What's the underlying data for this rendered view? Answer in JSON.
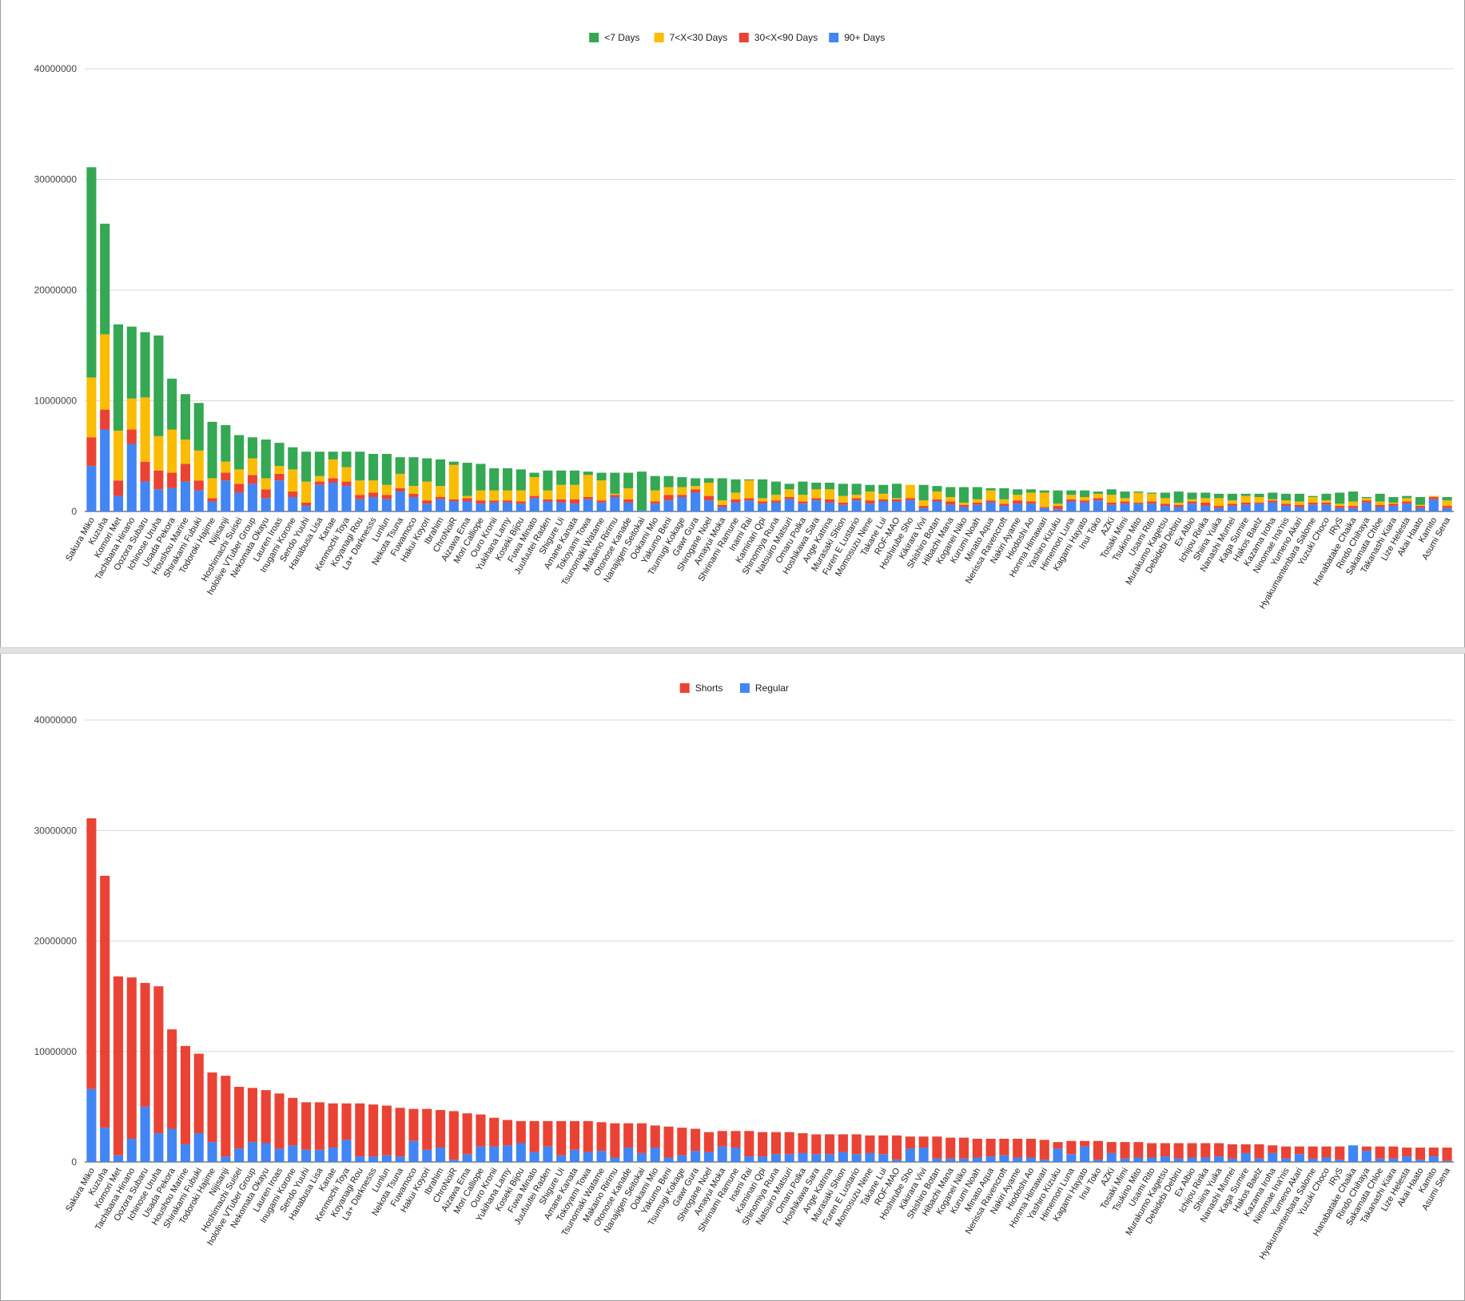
{
  "charts": [
    {
      "legend": [
        {
          "label": "<7 Days",
          "color": "#34a853"
        },
        {
          "label": "7<X<30 Days",
          "color": "#fbbc04"
        },
        {
          "label": "30<X<90 Days",
          "color": "#ea4335"
        },
        {
          "label": "90+ Days",
          "color": "#4285f4"
        }
      ]
    },
    {
      "legend": [
        {
          "label": "Shorts",
          "color": "#ea4335"
        },
        {
          "label": "Regular",
          "color": "#4285f4"
        }
      ]
    }
  ],
  "chart_data": [
    {
      "type": "bar",
      "stacked": true,
      "legend_position": "top",
      "grid": true,
      "ylim": [
        0,
        40000000
      ],
      "yticks": [
        "0",
        "10000000",
        "20000000",
        "30000000",
        "40000000"
      ],
      "categories": [
        "Sakura Miko",
        "Kuzuha",
        "Komori Met",
        "Tachibana Hinano",
        "Oozora Subaru",
        "Ichinose Uruha",
        "Usada Pekora",
        "Houshou Marine",
        "Shirakami Fubuki",
        "Todoroki Hajime",
        "Nijisanji",
        "Hoshimachi Suisei",
        "hololive VTuber Group",
        "Nekomata Okayu",
        "Lauren Iroas",
        "Inugami Korone",
        "Sendo Yuuhi",
        "Hanabusa Lisa",
        "Kanae",
        "Kenmochi Toya",
        "Koyanagi Rou",
        "La+ Darknesss",
        "Lunlun",
        "Nekota Tsuna",
        "Fuwamoco",
        "Hakui Koyori",
        "Ibrahim",
        "ChroNoiR",
        "Aizawa Ema",
        "Mori Calliope",
        "Ouro Kronii",
        "Yukihana Lamy",
        "Koseki Bijou",
        "Fuwa Minato",
        "Juufuutei Raden",
        "Shigure Ui",
        "Amane Kanata",
        "Tokoyami Towa",
        "Tsunomaki Watame",
        "Makaino Ririmu",
        "Otonose Kanade",
        "Nanajigen Seitokai",
        "Ookami Mio",
        "Yakumo Beni",
        "Tsumugi Kokage",
        "Gawr Gura",
        "Shirogane Noel",
        "Amayui Moka",
        "Shirinami Ramune",
        "Inami Rai",
        "Kaminari Qpi",
        "Shinomiya Runa",
        "Natsuiro Matsuri",
        "Omaru Polka",
        "Hoshikawa Sara",
        "Ange Katrina",
        "Murasaki Shion",
        "Furen E Lustario",
        "Momosuzu Nene",
        "Takane Lui",
        "ROF-MAO",
        "Hoshirube Sho",
        "Kikirara Vivi",
        "Shishiro Botan",
        "Hibachi Mana",
        "Koganei Niko",
        "Kurumi Noah",
        "Minato Aqua",
        "Nerissa Ravencroft",
        "Nakiri Ayame",
        "Hiodoshi Ao",
        "Honma Himawari",
        "Yashiro Kizuku",
        "Himemori Luna",
        "Kagami Hayato",
        "Inui Toko",
        "AZKi",
        "Tosaki Mimi",
        "Tsukino Mito",
        "Usami Rito",
        "Murakumo Kagetsu",
        "Debidebi Debiru",
        "Ex Albio",
        "Ichijou Ririka",
        "Shiina Yuika",
        "Nanashi Mumei",
        "Kaga Sumire",
        "Hakos Baelz",
        "Kazama Iroha",
        "Ninomae Ina'nis",
        "Yumeno Akari",
        "Hyakumantenbara Salome",
        "Yuzuki Choco",
        "IRyS",
        "Hanabatake Chaika",
        "Rindo Chihaya",
        "Sakamata Chloe",
        "Takanashi Kiara",
        "Lize Helesta",
        "Akai Haato",
        "Kamito",
        "Asumi Sena"
      ],
      "series": [
        {
          "name": "90+ Days",
          "values": [
            4100000,
            7400000,
            1400000,
            6100000,
            2700000,
            2000000,
            2100000,
            2700000,
            1900000,
            900000,
            2800000,
            1700000,
            2500000,
            1200000,
            2800000,
            1300000,
            500000,
            2400000,
            2600000,
            2300000,
            1100000,
            1300000,
            1100000,
            1800000,
            1300000,
            700000,
            1100000,
            900000,
            900000,
            700000,
            800000,
            800000,
            700000,
            1200000,
            900000,
            800000,
            700000,
            1100000,
            800000,
            1300000,
            800000,
            100000,
            700000,
            1000000,
            1300000,
            1700000,
            1000000,
            400000,
            800000,
            1000000,
            700000,
            800000,
            1100000,
            700000,
            1000000,
            800000,
            600000,
            1000000,
            700000,
            900000,
            900000,
            1000000,
            300000,
            900000,
            600000,
            400000,
            600000,
            800000,
            500000,
            700000,
            700000,
            300000,
            200000,
            900000,
            800000,
            1000000,
            600000,
            700000,
            700000,
            700000,
            500000,
            400000,
            700000,
            500000,
            300000,
            500000,
            600000,
            700000,
            800000,
            500000,
            400000,
            600000,
            600000,
            300000,
            300000,
            800000,
            400000,
            500000,
            700000,
            300000,
            1100000,
            300000
          ]
        },
        {
          "name": "30<X<90 Days",
          "values": [
            2600000,
            1800000,
            1400000,
            1300000,
            1800000,
            1700000,
            1400000,
            1600000,
            900000,
            300000,
            700000,
            800000,
            800000,
            800000,
            600000,
            500000,
            300000,
            300000,
            400000,
            400000,
            400000,
            400000,
            400000,
            300000,
            300000,
            300000,
            200000,
            200000,
            300000,
            300000,
            200000,
            200000,
            200000,
            200000,
            200000,
            300000,
            400000,
            200000,
            200000,
            200000,
            300000,
            0,
            200000,
            500000,
            200000,
            300000,
            400000,
            200000,
            300000,
            200000,
            200000,
            200000,
            200000,
            200000,
            200000,
            300000,
            200000,
            200000,
            300000,
            200000,
            200000,
            200000,
            200000,
            200000,
            300000,
            200000,
            200000,
            200000,
            200000,
            300000,
            200000,
            100000,
            300000,
            200000,
            200000,
            200000,
            200000,
            200000,
            100000,
            200000,
            200000,
            200000,
            200000,
            300000,
            200000,
            200000,
            200000,
            100000,
            200000,
            200000,
            200000,
            200000,
            200000,
            200000,
            200000,
            200000,
            200000,
            200000,
            200000,
            200000,
            200000,
            200000
          ]
        },
        {
          "name": "7<X<30 Days",
          "values": [
            5400000,
            6800000,
            4500000,
            2800000,
            5800000,
            3100000,
            3900000,
            2200000,
            2700000,
            1800000,
            1000000,
            1300000,
            1500000,
            1000000,
            700000,
            2000000,
            1900000,
            500000,
            1700000,
            1300000,
            1300000,
            1100000,
            900000,
            1300000,
            700000,
            1700000,
            1000000,
            3100000,
            200000,
            900000,
            900000,
            900000,
            1000000,
            1700000,
            800000,
            1300000,
            1300000,
            2000000,
            1800000,
            100000,
            1000000,
            0,
            1000000,
            700000,
            700000,
            300000,
            1200000,
            400000,
            600000,
            1600000,
            300000,
            500000,
            700000,
            600000,
            800000,
            900000,
            600000,
            300000,
            800000,
            500000,
            100000,
            1200000,
            500000,
            700000,
            400000,
            200000,
            300000,
            900000,
            400000,
            500000,
            800000,
            1300000,
            200000,
            400000,
            300000,
            400000,
            700000,
            300000,
            900000,
            700000,
            500000,
            200000,
            200000,
            400000,
            700000,
            300000,
            600000,
            500000,
            100000,
            300000,
            300000,
            500000,
            200000,
            200000,
            400000,
            200000,
            300000,
            100000,
            300000,
            100000,
            100000,
            500000
          ]
        },
        {
          "name": "<7 Days",
          "values": [
            19000000,
            10000000,
            9600000,
            6500000,
            5900000,
            9100000,
            4600000,
            4100000,
            4300000,
            5100000,
            3300000,
            3100000,
            1900000,
            3500000,
            2100000,
            2000000,
            2700000,
            2200000,
            700000,
            1400000,
            2600000,
            2400000,
            2800000,
            1500000,
            2600000,
            2100000,
            2400000,
            300000,
            3000000,
            2400000,
            2000000,
            2000000,
            1900000,
            400000,
            1800000,
            1300000,
            1300000,
            300000,
            700000,
            1900000,
            1400000,
            3500000,
            1300000,
            1000000,
            900000,
            700000,
            400000,
            2000000,
            1200000,
            100000,
            1700000,
            1200000,
            500000,
            1200000,
            600000,
            600000,
            1100000,
            1000000,
            600000,
            800000,
            1300000,
            0,
            1400000,
            500000,
            900000,
            1400000,
            1100000,
            200000,
            1000000,
            500000,
            300000,
            200000,
            1200000,
            400000,
            600000,
            200000,
            500000,
            600000,
            100000,
            100000,
            500000,
            1000000,
            600000,
            500000,
            400000,
            600000,
            200000,
            300000,
            600000,
            600000,
            700000,
            100000,
            600000,
            1000000,
            900000,
            100000,
            700000,
            500000,
            200000,
            700000,
            0,
            300000
          ]
        }
      ]
    },
    {
      "type": "bar",
      "stacked": true,
      "legend_position": "top",
      "grid": true,
      "ylim": [
        0,
        40000000
      ],
      "yticks": [
        "0",
        "10000000",
        "20000000",
        "30000000",
        "40000000"
      ],
      "categories": [
        "Sakura Miko",
        "Kuzuha",
        "Komori Met",
        "Tachibana Hinano",
        "Oozora Subaru",
        "Ichinose Uruha",
        "Usada Pekora",
        "Houshou Marine",
        "Shirakami Fubuki",
        "Todoroki Hajime",
        "Nijisanji",
        "Hoshimachi Suisei",
        "hololive VTuber Group",
        "Nekomata Okayu",
        "Lauren Iroas",
        "Inugami Korone",
        "Sendo Yuuhi",
        "Hanabusa Lisa",
        "Kanae",
        "Kenmochi Toya",
        "Koyanagi Rou",
        "La+ Darknesss",
        "Lunlun",
        "Nekota Tsuna",
        "Fuwamoco",
        "Hakui Koyori",
        "Ibrahim",
        "ChroNoiR",
        "Aizawa Ema",
        "Mori Calliope",
        "Ouro Kronii",
        "Yukihana Lamy",
        "Koseki Bijou",
        "Fuwa Minato",
        "Juufuutei Raden",
        "Shigure Ui",
        "Amane Kanata",
        "Tokoyami Towa",
        "Tsunomaki Watame",
        "Makaino Ririmu",
        "Otonose Kanade",
        "Nanajigen Seitokai",
        "Ookami Mio",
        "Yakumo Beni",
        "Tsumugi Kokage",
        "Gawr Gura",
        "Shirogane Noel",
        "Amayui Moka",
        "Shirinami Ramune",
        "Inami Rai",
        "Kaminari Qpi",
        "Shinomiya Runa",
        "Natsuiro Matsuri",
        "Omaru Polka",
        "Hoshikawa Sara",
        "Ange Katrina",
        "Murasaki Shion",
        "Furen E Lustario",
        "Momosuzu Nene",
        "Takane Lui",
        "ROF-MAO",
        "Hoshirube Sho",
        "Kikirara Vivi",
        "Shishiro Botan",
        "Hibachi Mana",
        "Koganei Niko",
        "Kurumi Noah",
        "Minato Aqua",
        "Nerissa Ravencroft",
        "Nakiri Ayame",
        "Hiodoshi Ao",
        "Honma Himawari",
        "Yashiro Kizuku",
        "Himemori Luna",
        "Kagami Hayato",
        "Inui Toko",
        "AZKi",
        "Tosaki Mimi",
        "Tsukino Mito",
        "Usami Rito",
        "Murakumo Kagetsu",
        "Debidebi Debiru",
        "Ex Albio",
        "Ichijou Ririka",
        "Shiina Yuika",
        "Nanashi Mumei",
        "Kaga Sumire",
        "Hakos Baelz",
        "Kazama Iroha",
        "Ninomae Ina'nis",
        "Yumeno Akari",
        "Hyakumantenbara Salome",
        "Yuzuki Choco",
        "IRyS",
        "Hanabatake Chaika",
        "Rindo Chihaya",
        "Sakamata Chloe",
        "Takanashi Kiara",
        "Lize Helesta",
        "Akai Haato",
        "Kamito",
        "Asumi Sena"
      ],
      "series": [
        {
          "name": "Regular",
          "values": [
            6600000,
            3100000,
            600000,
            2100000,
            5000000,
            2600000,
            3000000,
            1600000,
            2600000,
            1800000,
            500000,
            1200000,
            1800000,
            1700000,
            1200000,
            1500000,
            1100000,
            1100000,
            1300000,
            2000000,
            500000,
            500000,
            600000,
            500000,
            1900000,
            1100000,
            1300000,
            200000,
            700000,
            1400000,
            1400000,
            1500000,
            1700000,
            900000,
            1400000,
            600000,
            1100000,
            900000,
            1000000,
            400000,
            1300000,
            800000,
            1300000,
            400000,
            600000,
            1000000,
            900000,
            1400000,
            1300000,
            500000,
            500000,
            700000,
            700000,
            800000,
            700000,
            700000,
            900000,
            700000,
            800000,
            700000,
            200000,
            1200000,
            1300000,
            300000,
            300000,
            300000,
            400000,
            500000,
            600000,
            400000,
            400000,
            200000,
            1200000,
            700000,
            1400000,
            200000,
            800000,
            300000,
            400000,
            400000,
            500000,
            300000,
            400000,
            400000,
            500000,
            300000,
            800000,
            300000,
            800000,
            300000,
            700000,
            300000,
            400000,
            200000,
            1500000,
            1000000,
            300000,
            300000,
            500000,
            200000,
            500000,
            100000
          ]
        },
        {
          "name": "Shorts",
          "values": [
            24500000,
            22800000,
            16200000,
            14600000,
            11200000,
            13300000,
            9000000,
            8900000,
            7200000,
            6300000,
            7300000,
            5600000,
            4900000,
            4800000,
            5000000,
            4300000,
            4300000,
            4300000,
            4000000,
            3300000,
            4800000,
            4700000,
            4500000,
            4400000,
            2900000,
            3700000,
            3400000,
            4400000,
            3700000,
            2900000,
            2600000,
            2300000,
            2000000,
            2800000,
            2300000,
            3100000,
            2600000,
            2800000,
            2600000,
            3100000,
            2200000,
            2700000,
            2000000,
            2800000,
            2500000,
            2000000,
            1800000,
            1400000,
            1500000,
            2300000,
            2200000,
            2000000,
            2000000,
            1800000,
            1800000,
            1800000,
            1600000,
            1800000,
            1600000,
            1700000,
            2200000,
            1100000,
            1000000,
            2000000,
            1900000,
            1900000,
            1700000,
            1600000,
            1500000,
            1700000,
            1700000,
            1800000,
            600000,
            1200000,
            500000,
            1700000,
            1000000,
            1500000,
            1400000,
            1300000,
            1200000,
            1400000,
            1300000,
            1300000,
            1200000,
            1300000,
            800000,
            1300000,
            700000,
            1100000,
            700000,
            1100000,
            1000000,
            1200000,
            0,
            400000,
            1100000,
            1100000,
            800000,
            1100000,
            800000,
            1200000
          ]
        }
      ]
    }
  ]
}
